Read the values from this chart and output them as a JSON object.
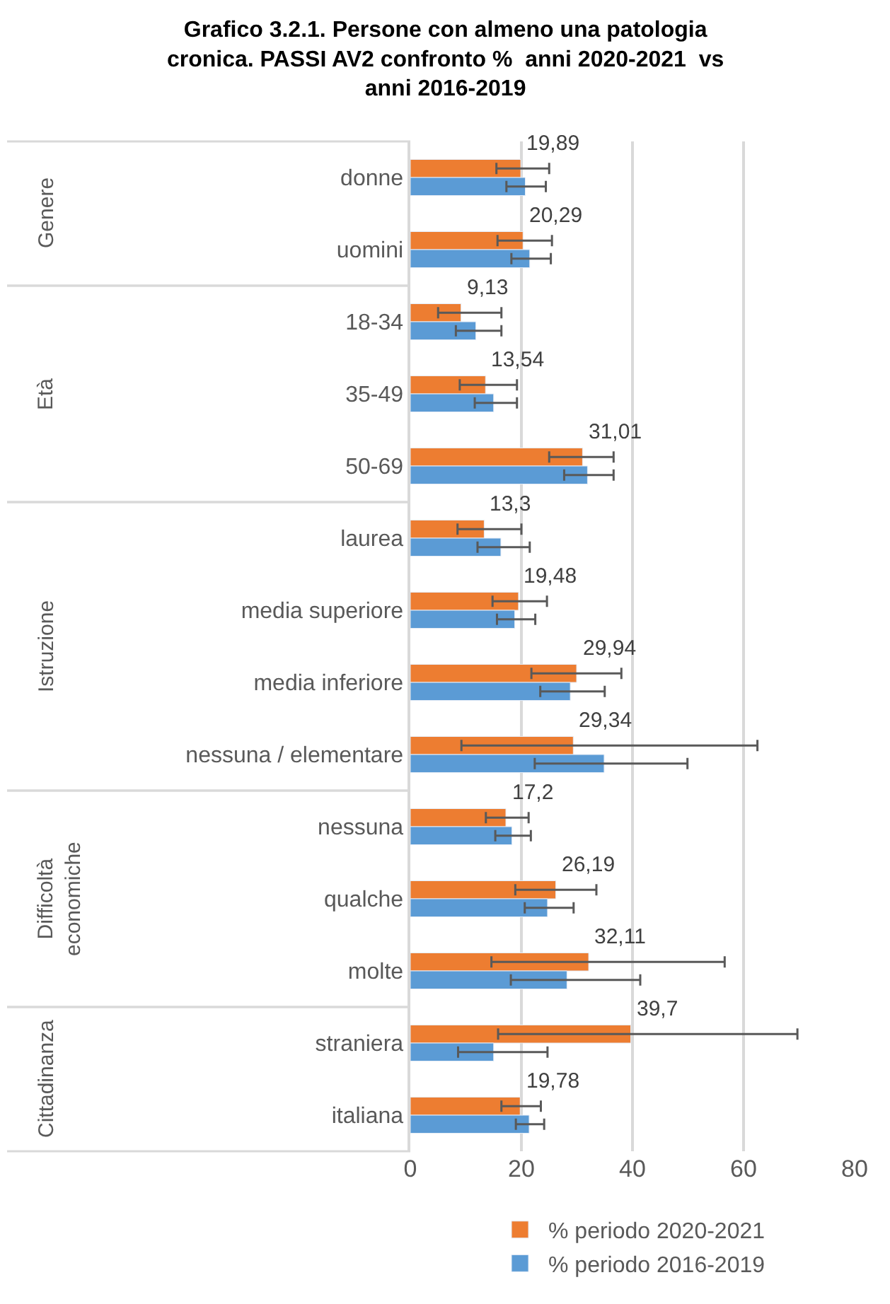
{
  "chart_data": [
    {
      "type": "bar",
      "orientation": "horizontal",
      "title": "Grafico 3.2.1. Persone con almeno una patologia\ncronica. PASSI AV2 confronto %  anni 2020-2021  vs\nanni 2016-2019",
      "ylabel": "Genere",
      "categories": [
        "donne",
        "uomini"
      ],
      "series": [
        {
          "name": "% periodo 2020-2021",
          "color": "#ed7d31",
          "values": [
            19.89,
            20.29
          ],
          "value_labels": [
            "19,89",
            "20,29"
          ],
          "errors": [
            [
              15.5,
              25.0
            ],
            [
              15.7,
              25.5
            ]
          ]
        },
        {
          "name": "% periodo 2016-2019",
          "color": "#5b9bd5",
          "values": [
            20.7,
            21.5
          ],
          "errors": [
            [
              17.3,
              24.4
            ],
            [
              18.2,
              25.3
            ]
          ]
        }
      ],
      "xlim": [
        0,
        80
      ],
      "xticks": [
        0,
        20,
        40,
        60,
        80
      ],
      "grid": "x",
      "legend": "bottom",
      "tick_labels": "y"
    },
    {
      "type": "bar",
      "orientation": "horizontal",
      "ylabel": "Età",
      "categories": [
        "18-34",
        "35-49",
        "50-69"
      ],
      "series": [
        {
          "name": "% periodo 2020-2021",
          "color": "#ed7d31",
          "values": [
            9.13,
            13.54,
            31.01
          ],
          "value_labels": [
            "9,13",
            "13,54",
            "31,01"
          ],
          "errors": [
            [
              5.0,
              16.4
            ],
            [
              8.9,
              19.2
            ],
            [
              25.0,
              36.6
            ]
          ]
        },
        {
          "name": "% periodo 2016-2019",
          "color": "#5b9bd5",
          "values": [
            11.8,
            15.0,
            31.9
          ],
          "errors": [
            [
              8.2,
              16.4
            ],
            [
              11.6,
              19.2
            ],
            [
              27.7,
              36.6
            ]
          ]
        }
      ],
      "xlim": [
        0,
        80
      ],
      "xticks": [
        0,
        20,
        40,
        60,
        80
      ],
      "grid": "x",
      "legend": "bottom",
      "tick_labels": "y"
    },
    {
      "type": "bar",
      "orientation": "horizontal",
      "ylabel": "Istruzione",
      "categories": [
        "laurea",
        "media superiore",
        "media inferiore",
        "nessuna / elementare"
      ],
      "series": [
        {
          "name": "% periodo 2020-2021",
          "color": "#ed7d31",
          "values": [
            13.3,
            19.48,
            29.94,
            29.34
          ],
          "value_labels": [
            "13,3",
            "19,48",
            "29,94",
            "29,34"
          ],
          "errors": [
            [
              8.5,
              20.0
            ],
            [
              14.8,
              24.6
            ],
            [
              21.8,
              38.0
            ],
            [
              9.2,
              62.5
            ]
          ]
        },
        {
          "name": "% periodo 2016-2019",
          "color": "#5b9bd5",
          "values": [
            16.3,
            18.8,
            28.8,
            34.9
          ],
          "errors": [
            [
              12.1,
              21.5
            ],
            [
              15.6,
              22.5
            ],
            [
              23.4,
              35.0
            ],
            [
              22.4,
              49.9
            ]
          ]
        }
      ],
      "xlim": [
        0,
        80
      ],
      "xticks": [
        0,
        20,
        40,
        60,
        80
      ],
      "grid": "x",
      "legend": "bottom",
      "tick_labels": "y"
    },
    {
      "type": "bar",
      "orientation": "horizontal",
      "ylabel": "Difficoltà\neconomiche",
      "categories": [
        "nessuna",
        "qualche",
        "molte"
      ],
      "series": [
        {
          "name": "% periodo 2020-2021",
          "color": "#ed7d31",
          "values": [
            17.2,
            26.19,
            32.11
          ],
          "value_labels": [
            "17,2",
            "26,19",
            "32,11"
          ],
          "errors": [
            [
              13.6,
              21.3
            ],
            [
              18.9,
              33.5
            ],
            [
              14.6,
              56.6
            ]
          ]
        },
        {
          "name": "% periodo 2016-2019",
          "color": "#5b9bd5",
          "values": [
            18.3,
            24.7,
            28.2
          ],
          "errors": [
            [
              15.3,
              21.7
            ],
            [
              20.6,
              29.4
            ],
            [
              18.1,
              41.4
            ]
          ]
        }
      ],
      "xlim": [
        0,
        80
      ],
      "xticks": [
        0,
        20,
        40,
        60,
        80
      ],
      "grid": "x",
      "legend": "bottom",
      "tick_labels": "y"
    },
    {
      "type": "bar",
      "orientation": "horizontal",
      "ylabel": "Cittadinanza",
      "categories": [
        "straniera",
        "italiana"
      ],
      "series": [
        {
          "name": "% periodo 2020-2021",
          "color": "#ed7d31",
          "values": [
            39.7,
            19.78
          ],
          "value_labels": [
            "39,7",
            "19,78"
          ],
          "errors": [
            [
              15.8,
              69.7
            ],
            [
              16.4,
              23.5
            ]
          ]
        },
        {
          "name": "% periodo 2016-2019",
          "color": "#5b9bd5",
          "values": [
            15.0,
            21.4
          ],
          "errors": [
            [
              8.6,
              24.7
            ],
            [
              19.0,
              24.1
            ]
          ]
        }
      ],
      "xlim": [
        0,
        80
      ],
      "xticks": [
        0,
        20,
        40,
        60,
        80
      ],
      "grid": "x",
      "legend": "bottom"
    }
  ]
}
